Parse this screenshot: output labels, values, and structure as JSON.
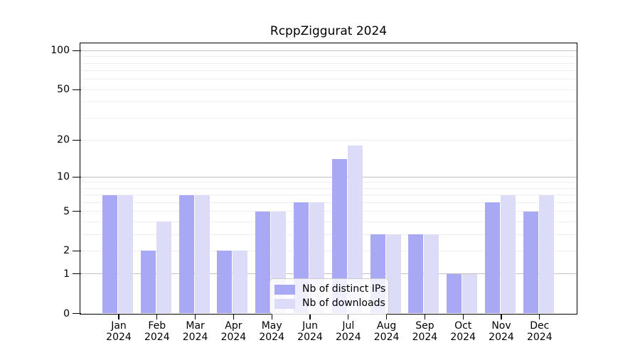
{
  "chart_data": {
    "type": "bar",
    "title": "RcppZiggurat 2024",
    "categories": [
      {
        "month": "Jan",
        "year": "2024"
      },
      {
        "month": "Feb",
        "year": "2024"
      },
      {
        "month": "Mar",
        "year": "2024"
      },
      {
        "month": "Apr",
        "year": "2024"
      },
      {
        "month": "May",
        "year": "2024"
      },
      {
        "month": "Jun",
        "year": "2024"
      },
      {
        "month": "Jul",
        "year": "2024"
      },
      {
        "month": "Aug",
        "year": "2024"
      },
      {
        "month": "Sep",
        "year": "2024"
      },
      {
        "month": "Oct",
        "year": "2024"
      },
      {
        "month": "Nov",
        "year": "2024"
      },
      {
        "month": "Dec",
        "year": "2024"
      }
    ],
    "series": [
      {
        "name": "Nb of distinct IPs",
        "color": "#a8a8f4",
        "values": [
          7,
          2,
          7,
          2,
          5,
          6,
          14,
          3,
          3,
          1,
          6,
          5
        ]
      },
      {
        "name": "Nb of downloads",
        "color": "#dcdcf8",
        "values": [
          7,
          4,
          7,
          2,
          5,
          6,
          18,
          3,
          3,
          1,
          7,
          7
        ]
      }
    ],
    "y_axis": {
      "scale": "log1p",
      "tick_labels": [
        "100",
        "50",
        "20",
        "10",
        "5",
        "2",
        "1",
        "0"
      ],
      "tick_values": [
        100,
        50,
        20,
        10,
        5,
        2,
        1,
        0
      ],
      "major_gridlines": [
        1,
        10,
        100
      ],
      "minor_gridlines": [
        2,
        3,
        4,
        5,
        6,
        7,
        8,
        9,
        20,
        30,
        40,
        50,
        60,
        70,
        80,
        90
      ],
      "y_min": 0,
      "y_max_visible": 100
    },
    "legend_position": "inside-bottom-center",
    "grid": true
  },
  "colors": {
    "bar_distinct_ips": "#a8a8f4",
    "bar_downloads": "#dcdcf8",
    "grid_major": "#c2c2c2",
    "grid_minor": "#efefef",
    "axis": "#000000",
    "legend_border": "#cccccc",
    "title_text": "#000000"
  }
}
